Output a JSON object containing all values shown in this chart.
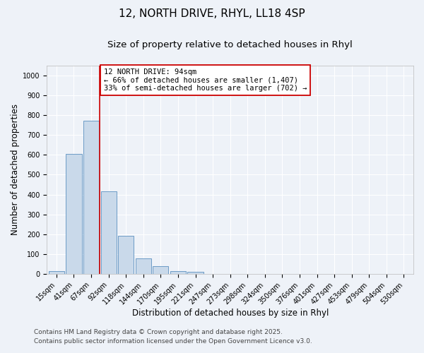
{
  "title": "12, NORTH DRIVE, RHYL, LL18 4SP",
  "subtitle": "Size of property relative to detached houses in Rhyl",
  "xlabel": "Distribution of detached houses by size in Rhyl",
  "ylabel": "Number of detached properties",
  "bar_labels": [
    "15sqm",
    "41sqm",
    "67sqm",
    "92sqm",
    "118sqm",
    "144sqm",
    "170sqm",
    "195sqm",
    "221sqm",
    "247sqm",
    "273sqm",
    "298sqm",
    "324sqm",
    "350sqm",
    "376sqm",
    "401sqm",
    "427sqm",
    "453sqm",
    "479sqm",
    "504sqm",
    "530sqm"
  ],
  "bar_values": [
    15,
    605,
    770,
    415,
    192,
    78,
    40,
    15,
    10,
    0,
    0,
    0,
    0,
    0,
    0,
    0,
    0,
    0,
    0,
    0,
    0
  ],
  "bar_color": "#c9d9ea",
  "bar_edge_color": "#5a8fc0",
  "highlight_line_color": "#cc0000",
  "annotation_line1": "12 NORTH DRIVE: 94sqm",
  "annotation_line2": "← 66% of detached houses are smaller (1,407)",
  "annotation_line3": "33% of semi-detached houses are larger (702) →",
  "annotation_box_color": "#ffffff",
  "annotation_box_edge": "#cc0000",
  "ylim": [
    0,
    1050
  ],
  "yticks": [
    0,
    100,
    200,
    300,
    400,
    500,
    600,
    700,
    800,
    900,
    1000
  ],
  "footer1": "Contains HM Land Registry data © Crown copyright and database right 2025.",
  "footer2": "Contains public sector information licensed under the Open Government Licence v3.0.",
  "background_color": "#eef2f8",
  "grid_color": "#ffffff",
  "title_fontsize": 11,
  "subtitle_fontsize": 9.5,
  "axis_label_fontsize": 8.5,
  "tick_fontsize": 7,
  "annotation_fontsize": 7.5,
  "footer_fontsize": 6.5
}
